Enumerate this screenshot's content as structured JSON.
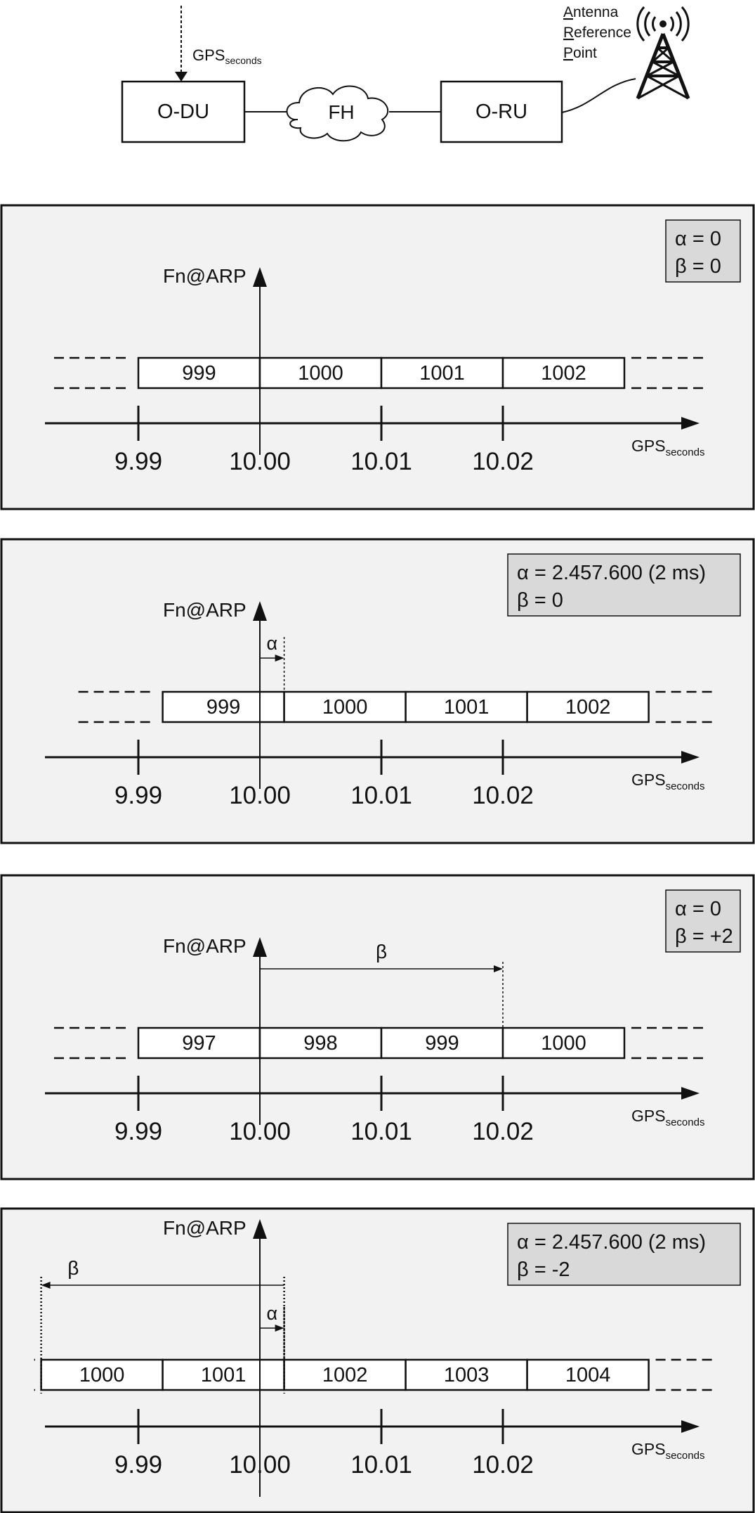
{
  "top": {
    "odu_label": "O-DU",
    "fh_label": "FH",
    "oru_label": "O-RU",
    "gps_base": "GPS",
    "gps_sub": "seconds",
    "antenna_lines": [
      {
        "first": "A",
        "rest": "ntenna"
      },
      {
        "first": "R",
        "rest": "eference"
      },
      {
        "first": "P",
        "rest": "oint"
      }
    ]
  },
  "common": {
    "fn_label": "Fn@ARP",
    "gps_base": "GPS",
    "gps_sub": "seconds",
    "ticks": [
      "9.99",
      "10.00",
      "10.01",
      "10.02"
    ],
    "alpha_symbol": "α",
    "beta_symbol": "β"
  },
  "panels": [
    {
      "info": [
        "α = 0",
        "β = 0"
      ],
      "frame_offset_ms": 0,
      "first_frame_index": -1,
      "frames": [
        "999",
        "1000",
        "1001",
        "1002"
      ],
      "alpha_ms": 0,
      "beta_frames": 0
    },
    {
      "info": [
        "α = 2.457.600 (2 ms)",
        "β = 0"
      ],
      "frame_offset_ms": 2,
      "first_frame_index": -1,
      "frames": [
        "999",
        "1000",
        "1001",
        "1002"
      ],
      "alpha_ms": 2,
      "beta_frames": 0
    },
    {
      "info": [
        "α = 0",
        "β = +2"
      ],
      "frame_offset_ms": 0,
      "first_frame_index": -1,
      "frames": [
        "997",
        "998",
        "999",
        "1000"
      ],
      "alpha_ms": 0,
      "beta_frames": 2
    },
    {
      "info": [
        "α = 2.457.600 (2 ms)",
        "β = -2"
      ],
      "frame_offset_ms": 2,
      "first_frame_index": -2,
      "frames": [
        "1000",
        "1001",
        "1002",
        "1003",
        "1004"
      ],
      "alpha_ms": 2,
      "beta_frames": -2
    }
  ]
}
